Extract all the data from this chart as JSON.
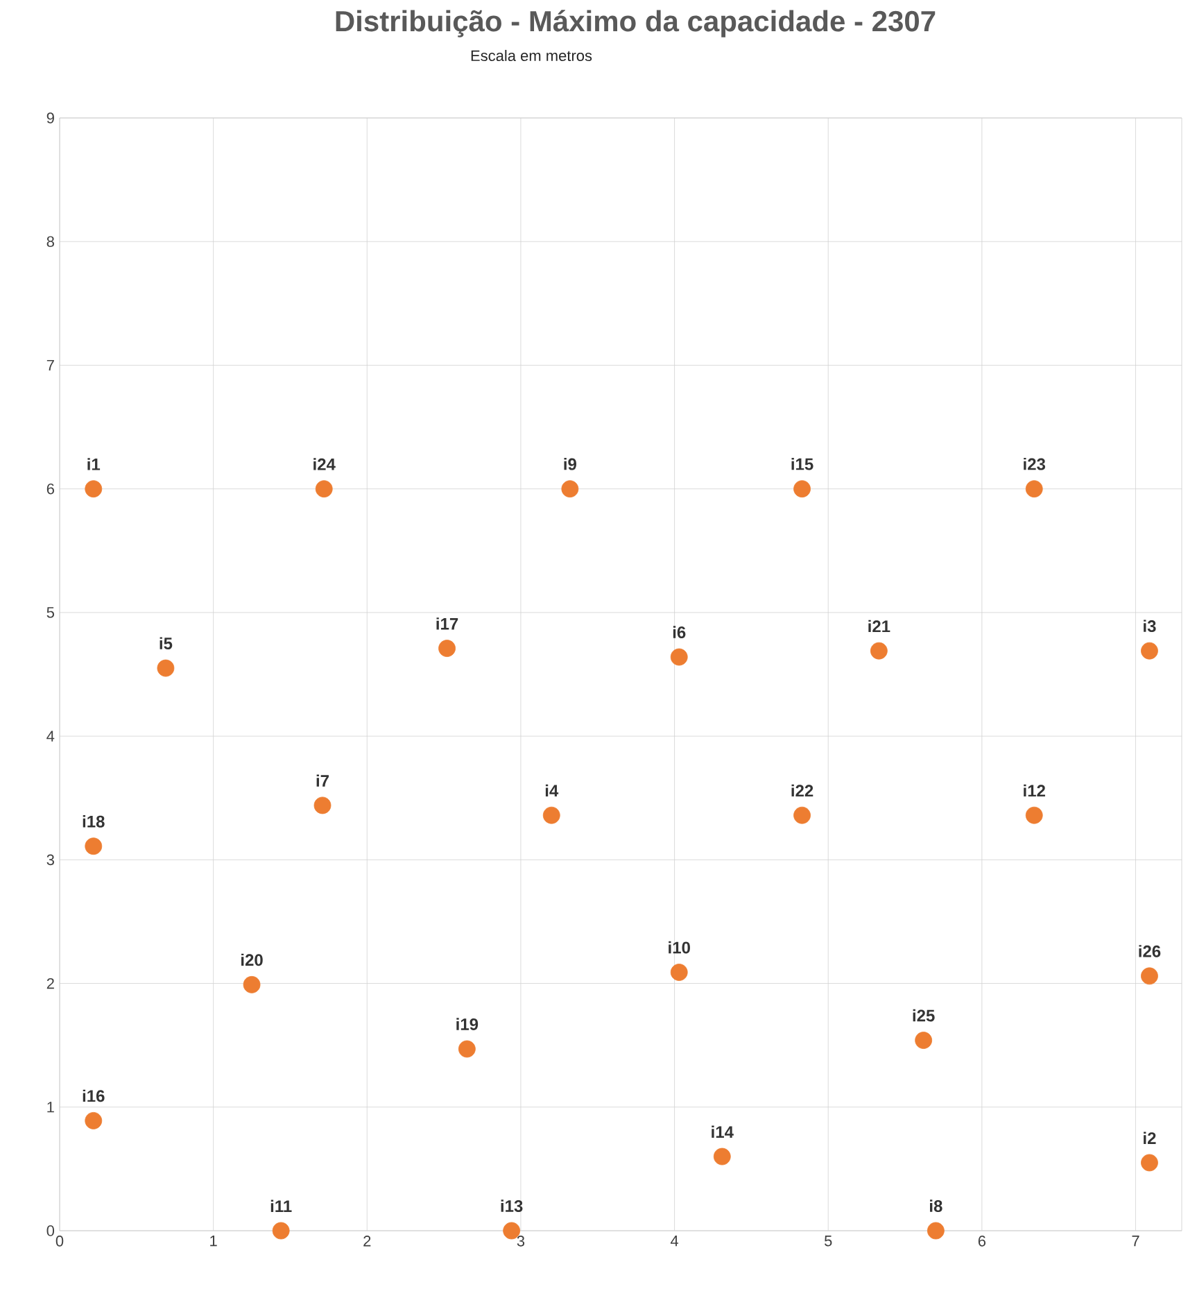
{
  "chart_data": {
    "type": "scatter",
    "title": "Distribuição - Máximo da capacidade - 2307",
    "subtitle": "Escala em metros",
    "x": [
      0.22,
      7.09,
      7.09,
      3.2,
      0.69,
      4.03,
      1.71,
      5.7,
      3.32,
      4.03,
      1.44,
      6.34,
      2.94,
      4.31,
      4.83,
      0.22,
      2.52,
      0.22,
      2.65,
      1.25,
      5.33,
      4.83,
      6.34,
      1.72,
      5.62,
      7.09
    ],
    "values": [
      6,
      0.55,
      4.69,
      3.36,
      4.55,
      4.64,
      3.44,
      0,
      6,
      2.09,
      0,
      3.36,
      0,
      0.6,
      6,
      0.89,
      4.71,
      3.11,
      1.47,
      1.99,
      4.69,
      3.36,
      6,
      6,
      1.54,
      2.06
    ],
    "color": "#ed7d31",
    "marker": "circle",
    "grid": true,
    "xlim": [
      0,
      7.3
    ],
    "ylim": [
      0,
      9
    ],
    "xticks": [
      0,
      1,
      2,
      3,
      4,
      5,
      6,
      7
    ],
    "yticks": [
      0,
      1,
      2,
      3,
      4,
      5,
      6,
      7,
      8,
      9
    ],
    "annotations": [
      {
        "text": "i1",
        "x": 0.22,
        "y": 6
      },
      {
        "text": "i2",
        "x": 7.09,
        "y": 0.55
      },
      {
        "text": "i3",
        "x": 7.09,
        "y": 4.69
      },
      {
        "text": "i4",
        "x": 3.2,
        "y": 3.36
      },
      {
        "text": "i5",
        "x": 0.69,
        "y": 4.55
      },
      {
        "text": "i6",
        "x": 4.03,
        "y": 4.64
      },
      {
        "text": "i7",
        "x": 1.71,
        "y": 3.44
      },
      {
        "text": "i8",
        "x": 5.7,
        "y": 0
      },
      {
        "text": "i9",
        "x": 3.32,
        "y": 6
      },
      {
        "text": "i10",
        "x": 4.03,
        "y": 2.09
      },
      {
        "text": "i11",
        "x": 1.44,
        "y": 0
      },
      {
        "text": "i12",
        "x": 6.34,
        "y": 3.36
      },
      {
        "text": "i13",
        "x": 2.94,
        "y": 0
      },
      {
        "text": "i14",
        "x": 4.31,
        "y": 0.6
      },
      {
        "text": "i15",
        "x": 4.83,
        "y": 6
      },
      {
        "text": "i16",
        "x": 0.22,
        "y": 0.89
      },
      {
        "text": "i17",
        "x": 2.52,
        "y": 4.71
      },
      {
        "text": "i18",
        "x": 0.22,
        "y": 3.11
      },
      {
        "text": "i19",
        "x": 2.65,
        "y": 1.47
      },
      {
        "text": "i20",
        "x": 1.25,
        "y": 1.99
      },
      {
        "text": "i21",
        "x": 5.33,
        "y": 4.69
      },
      {
        "text": "i22",
        "x": 4.83,
        "y": 3.36
      },
      {
        "text": "i23",
        "x": 6.34,
        "y": 6
      },
      {
        "text": "i24",
        "x": 1.72,
        "y": 6
      },
      {
        "text": "i25",
        "x": 5.62,
        "y": 1.54
      },
      {
        "text": "i26",
        "x": 7.09,
        "y": 2.06
      }
    ]
  }
}
